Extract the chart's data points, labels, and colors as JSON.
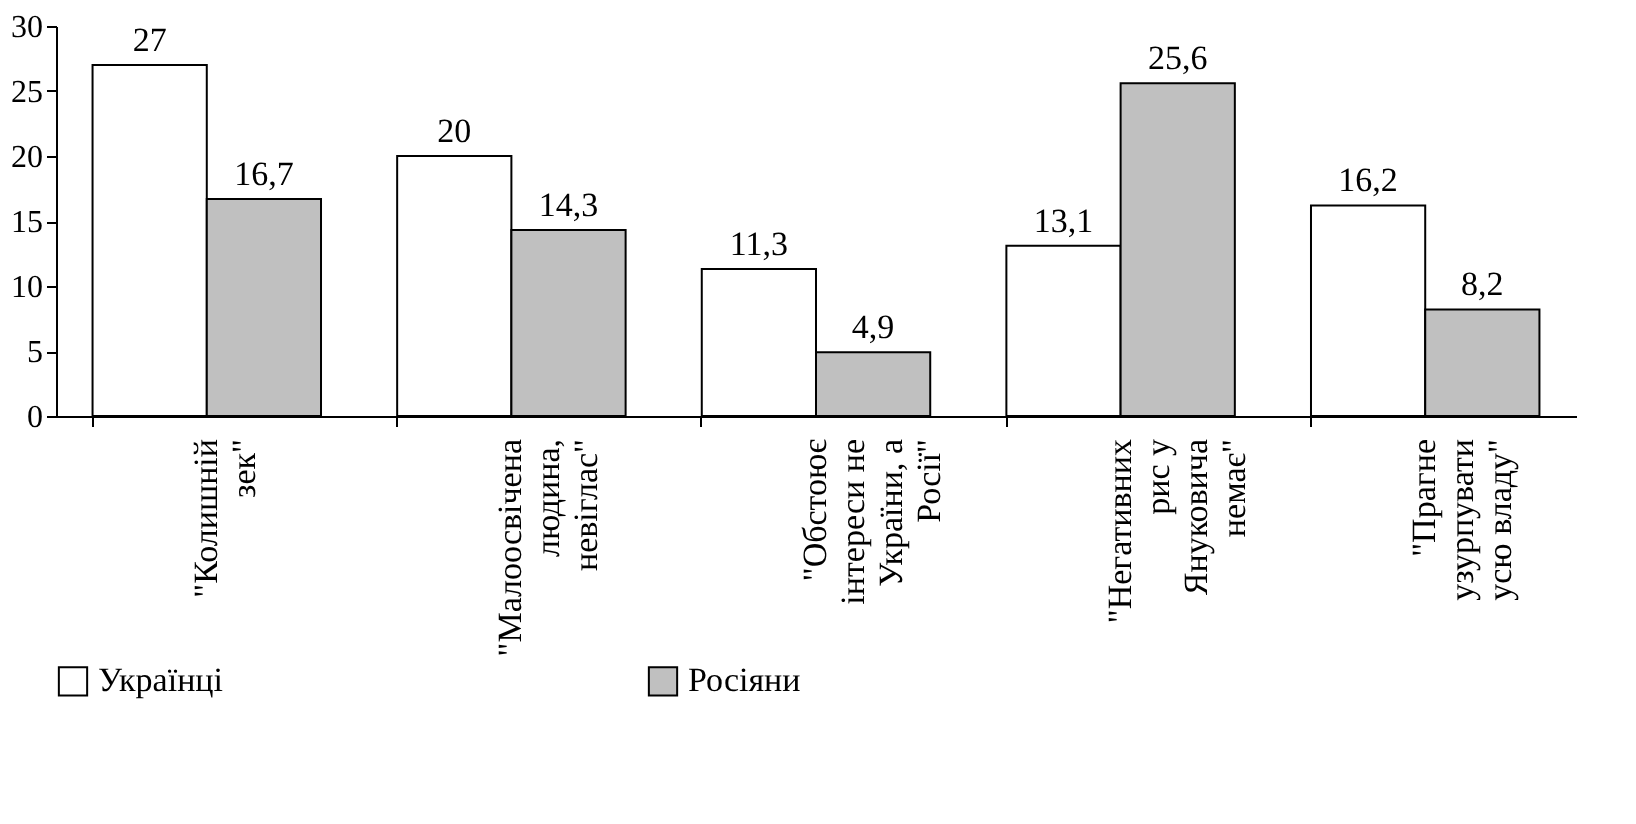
{
  "chart_data": {
    "type": "bar",
    "categories": [
      "\"Колишній\nзек\"",
      "\"Малоосвічена\nлюдина,\nневіглас\"",
      "\"Обстоює\nінтереси не\nУкраїни, а\nРосії\"",
      "\"Негативних\nрис у\nЯнуковича\nнемає\"",
      "\"Прагне\nузурпувати\nусю владу\""
    ],
    "series": [
      {
        "name": "Українці",
        "color": "#ffffff",
        "values": [
          27,
          20,
          11.3,
          13.1,
          16.2
        ],
        "value_labels": [
          "27",
          "20",
          "11,3",
          "13,1",
          "16,2"
        ]
      },
      {
        "name": "Росіяни",
        "color": "#c0c0c0",
        "values": [
          16.7,
          14.3,
          4.9,
          25.6,
          8.2
        ],
        "value_labels": [
          "16,7",
          "14,3",
          "4,9",
          "25,6",
          "8,2"
        ]
      }
    ],
    "ylim": [
      0,
      30
    ],
    "yticks": [
      0,
      5,
      10,
      15,
      20,
      25,
      30
    ],
    "grid": false,
    "legend": "bottom"
  }
}
